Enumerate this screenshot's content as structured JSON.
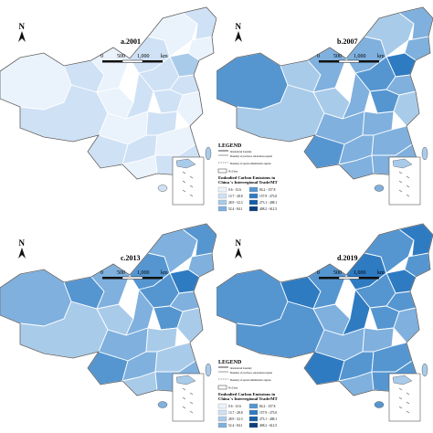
{
  "panels": [
    {
      "id": "a",
      "title": "a.2001",
      "show_legend": false,
      "provinces": [
        0,
        1,
        1,
        0,
        0,
        1,
        0,
        1,
        0,
        2,
        1,
        1,
        1,
        1,
        0,
        1,
        0,
        1,
        1,
        0,
        0,
        1
      ]
    },
    {
      "id": "b",
      "title": "b.2007",
      "show_legend": true,
      "provinces": [
        4,
        2,
        2,
        2,
        3,
        3,
        2,
        3,
        3,
        5,
        4,
        3,
        4,
        3,
        3,
        3,
        2,
        4,
        3,
        3,
        3,
        3
      ]
    },
    {
      "id": "c",
      "title": "c.2013",
      "show_legend": false,
      "provinces": [
        3,
        4,
        2,
        2,
        3,
        4,
        3,
        4,
        3,
        5,
        4,
        3,
        4,
        3,
        3,
        2,
        2,
        4,
        3,
        2,
        2,
        3
      ]
    },
    {
      "id": "d",
      "title": "d.2019",
      "show_legend": true,
      "provinces": [
        4,
        5,
        4,
        3,
        4,
        5,
        4,
        5,
        4,
        5,
        4,
        5,
        4,
        4,
        3,
        3,
        3,
        5,
        4,
        4,
        3,
        4
      ]
    }
  ],
  "north_label": "N",
  "scale": {
    "labels": [
      "0",
      "500",
      "1,000",
      "km"
    ]
  },
  "legend": {
    "heading": "LEGEND",
    "items": [
      "International boundary",
      "Boundary of provinces, autonomous regions and municipalities directly under the central government",
      "Boundary of special administrative regions"
    ],
    "no_data": "No Data",
    "title_line1": "Embodied Carbon Emissions in",
    "title_line2": "China 's Interregional Trade/MT",
    "bins": [
      "0.6 - 13.6",
      "13.7 - 28.8",
      "28.9 - 52.3",
      "52.4 - 84.1",
      "84.2 - 157.8",
      "157.9 - 273.0",
      "273.1 - 408.1",
      "408.2 - 612.5"
    ]
  },
  "colors": {
    "bins": [
      "#eaf2fb",
      "#cfe1f5",
      "#a9cbea",
      "#7fb0de",
      "#5596d1",
      "#2f7bc2",
      "#155fa8",
      "#0b3f7e"
    ],
    "border": "#ffffff",
    "outline": "#5f5f5f"
  }
}
